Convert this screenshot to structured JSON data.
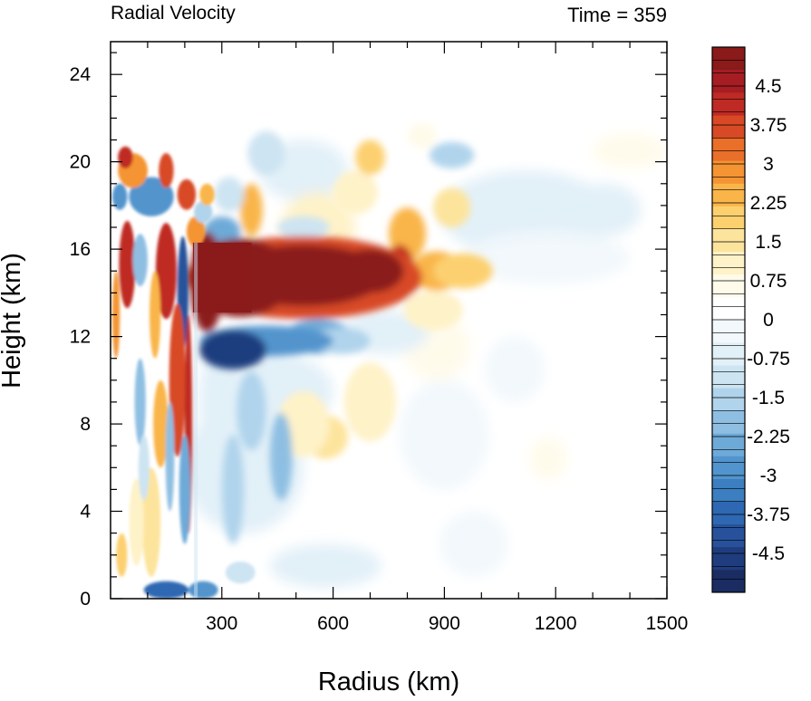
{
  "chart_data": {
    "type": "heatmap",
    "title_left": "Radial Velocity",
    "title_right": "Time = 359",
    "xlabel": "Radius (km)",
    "ylabel": "Height (km)",
    "xlim": [
      0,
      1500
    ],
    "ylim": [
      0,
      25.5
    ],
    "xticks": [
      300,
      600,
      900,
      1200,
      1500
    ],
    "yticks": [
      0,
      4,
      8,
      12,
      16,
      20,
      24
    ],
    "colorbar": {
      "min": -5.25,
      "max": 5.25,
      "step": 0.25,
      "labels": [
        4.5,
        3.75,
        3,
        2.25,
        1.5,
        0.75,
        0,
        -0.75,
        -1.5,
        -2.25,
        -3,
        -3.75,
        -4.5
      ],
      "colors": [
        "#1a2c62",
        "#1f3d7e",
        "#27529b",
        "#2f68b2",
        "#3b7fc1",
        "#5294cd",
        "#6eaad8",
        "#8ebfe2",
        "#b0d4ec",
        "#cde4f2",
        "#e2f0f8",
        "#f2f8fc",
        "#ffffff",
        "#fffbeb",
        "#fef2c8",
        "#fde49c",
        "#fcd06f",
        "#f9b54a",
        "#f49433",
        "#ea6f28",
        "#d84925",
        "#bf2a24",
        "#a61d23",
        "#8b1a1a"
      ]
    },
    "features": [
      {
        "name": "upper-tropospheric outflow jet",
        "value": 5.25,
        "r_range": [
          225,
          785
        ],
        "z_range": [
          13.0,
          16.3
        ]
      },
      {
        "name": "outflow extension",
        "value": 2.5,
        "r_range": [
          780,
          1000
        ],
        "z_range": [
          14.2,
          15.8
        ]
      },
      {
        "name": "inflow beneath outflow",
        "value": -4.0,
        "r_range": [
          230,
          480
        ],
        "z_range": [
          10.8,
          12.4
        ]
      },
      {
        "name": "inner-core updraft band",
        "value": 3.5,
        "r_range": [
          130,
          225
        ],
        "z_range": [
          0,
          16
        ]
      },
      {
        "name": "upper-level layered dipoles",
        "value": 3.0,
        "r_range": [
          0,
          230
        ],
        "z_range": [
          16,
          21
        ]
      },
      {
        "name": "boundary-layer inflow",
        "value": -3.0,
        "r_range": [
          80,
          300
        ],
        "z_range": [
          0,
          1
        ]
      }
    ]
  }
}
